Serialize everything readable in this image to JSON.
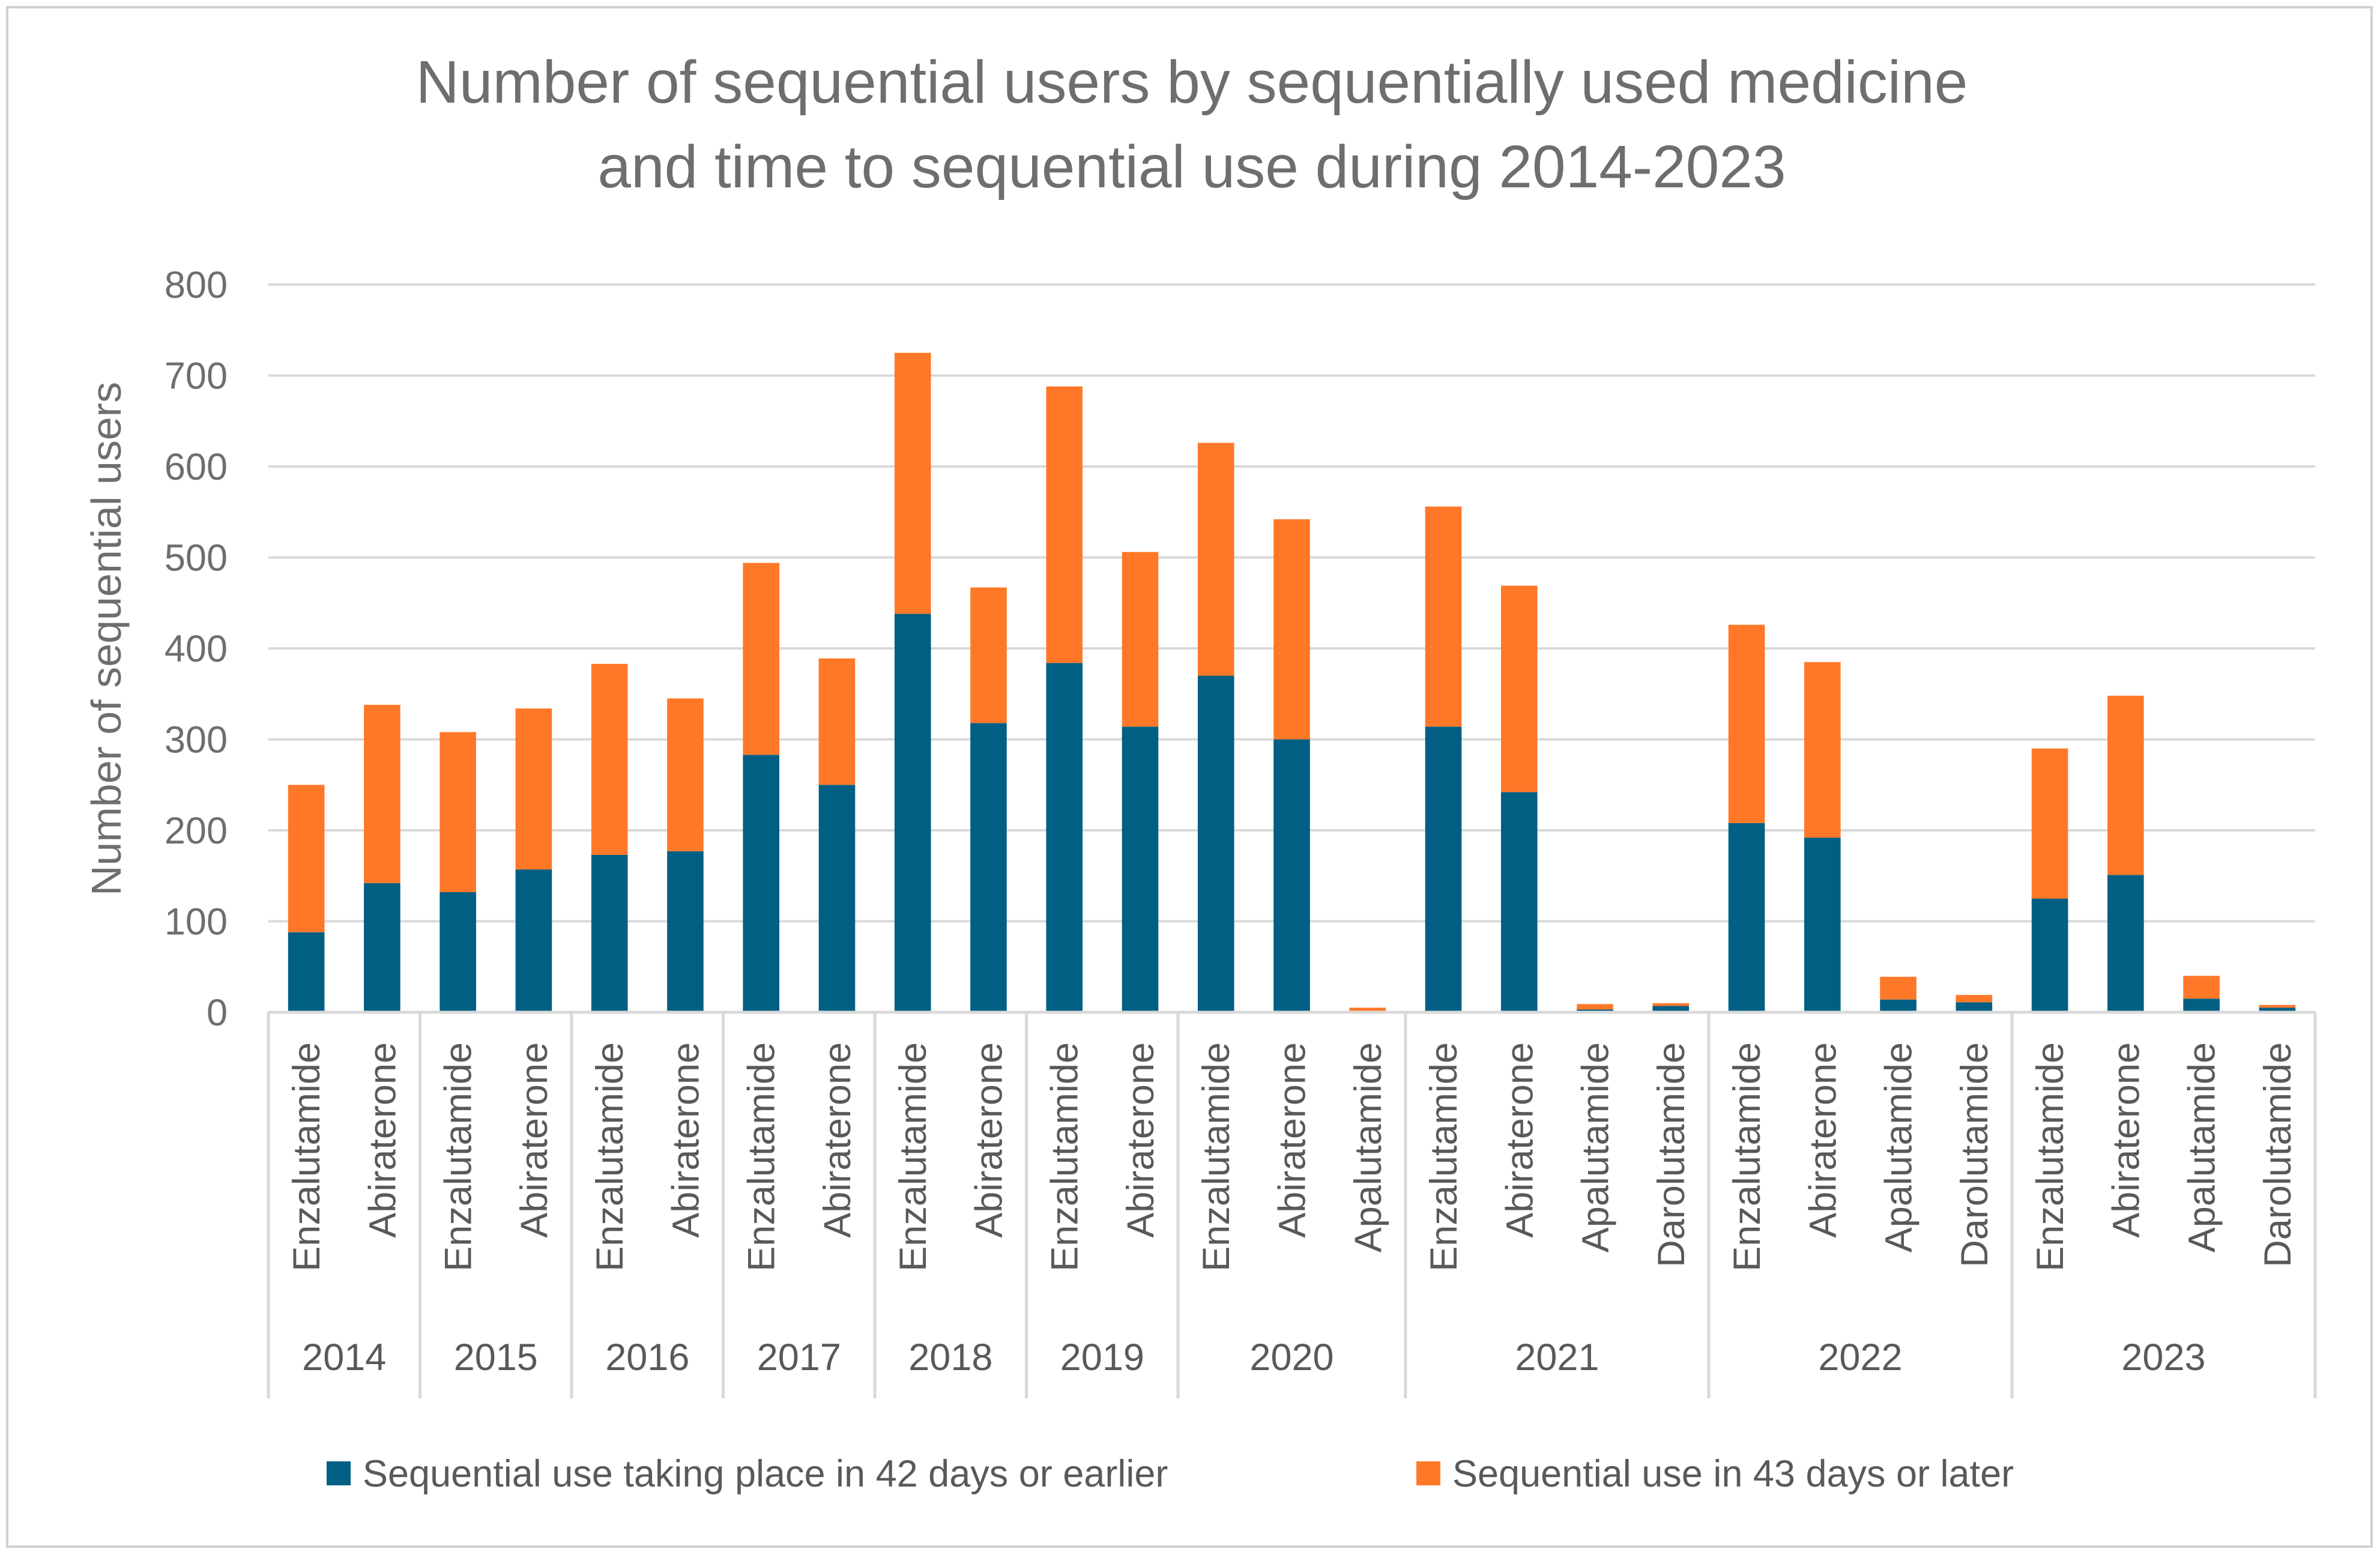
{
  "chart_data": {
    "type": "bar",
    "stacked": true,
    "title_lines": [
      "Number of sequential users by sequentially used medicine",
      "and time to sequential use during 2014-2023"
    ],
    "xlabel": "",
    "ylabel": "Number of sequential users",
    "ylim": [
      0,
      800
    ],
    "yticks": [
      0,
      100,
      200,
      300,
      400,
      500,
      600,
      700,
      800
    ],
    "grid": true,
    "legend_position": "bottom",
    "groups": [
      {
        "label": "2014",
        "categories": [
          "Enzalutamide",
          "Abiraterone"
        ]
      },
      {
        "label": "2015",
        "categories": [
          "Enzalutamide",
          "Abiraterone"
        ]
      },
      {
        "label": "2016",
        "categories": [
          "Enzalutamide",
          "Abiraterone"
        ]
      },
      {
        "label": "2017",
        "categories": [
          "Enzalutamide",
          "Abiraterone"
        ]
      },
      {
        "label": "2018",
        "categories": [
          "Enzalutamide",
          "Abiraterone"
        ]
      },
      {
        "label": "2019",
        "categories": [
          "Enzalutamide",
          "Abiraterone"
        ]
      },
      {
        "label": "2020",
        "categories": [
          "Enzalutamide",
          "Abiraterone",
          "Apalutamide"
        ]
      },
      {
        "label": "2021",
        "categories": [
          "Enzalutamide",
          "Abiraterone",
          "Apalutamide",
          "Darolutamide"
        ]
      },
      {
        "label": "2022",
        "categories": [
          "Enzalutamide",
          "Abiraterone",
          "Apalutamide",
          "Darolutamide"
        ]
      },
      {
        "label": "2023",
        "categories": [
          "Enzalutamide",
          "Abiraterone",
          "Apalutamide",
          "Darolutamide"
        ]
      }
    ],
    "series": [
      {
        "name": "Sequential use taking place in 42 days or earlier",
        "color": "#005F83",
        "values": [
          88,
          142,
          132,
          157,
          173,
          177,
          283,
          250,
          438,
          318,
          384,
          314,
          370,
          300,
          0,
          314,
          242,
          3,
          7,
          208,
          192,
          14,
          11,
          125,
          151,
          15,
          5
        ]
      },
      {
        "name": "Sequential use in 43 days or later",
        "color": "#FF7828",
        "values": [
          162,
          196,
          176,
          177,
          210,
          168,
          211,
          139,
          287,
          149,
          304,
          192,
          256,
          242,
          5,
          242,
          227,
          6,
          3,
          218,
          193,
          25,
          8,
          165,
          197,
          25,
          3
        ]
      }
    ]
  }
}
